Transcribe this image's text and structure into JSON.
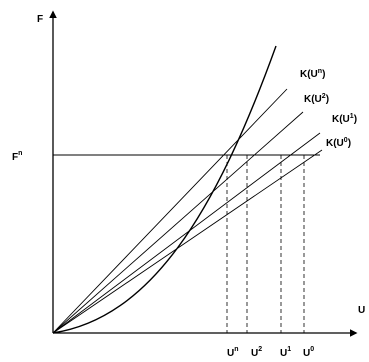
{
  "axes": {
    "y_label": "F",
    "x_label": "U",
    "y_level_label": {
      "base": "F",
      "sup": "n"
    }
  },
  "lines": [
    {
      "base": "K(U",
      "sup": "n",
      "close": ")"
    },
    {
      "base": "K(U",
      "sup": "2",
      "close": ")"
    },
    {
      "base": "K(U",
      "sup": "1",
      "close": ")"
    },
    {
      "base": "K(U",
      "sup": "0",
      "close": ")"
    }
  ],
  "x_ticks": [
    {
      "base": "U",
      "sup": "n"
    },
    {
      "base": "U",
      "sup": "2"
    },
    {
      "base": "U",
      "sup": "1"
    },
    {
      "base": "U",
      "sup": "0"
    }
  ],
  "colors": {
    "ink": "#000000",
    "background": "#ffffff"
  }
}
